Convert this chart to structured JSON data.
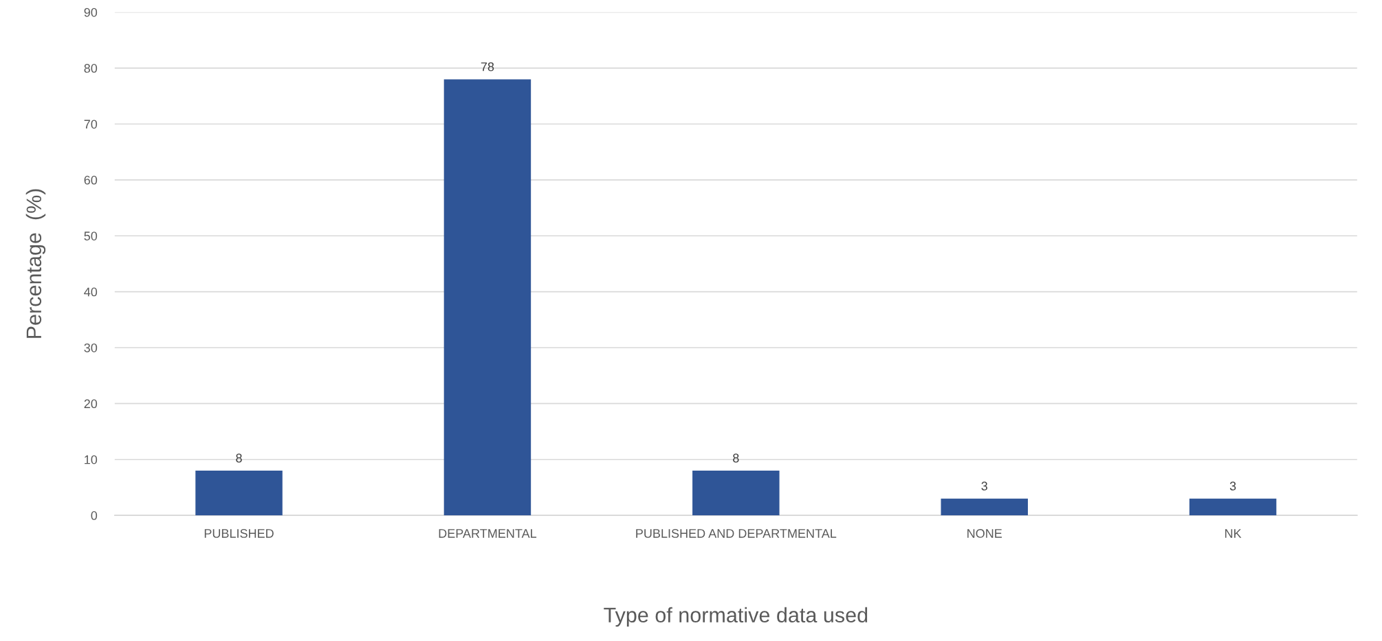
{
  "chart_data": {
    "type": "bar",
    "xlabel": "Type of normative data used",
    "ylabel": "Percentage  (%)",
    "categories": [
      "PUBLISHED",
      "DEPARTMENTAL",
      "PUBLISHED AND DEPARTMENTAL",
      "NONE",
      "NK"
    ],
    "values": [
      8,
      78,
      8,
      3,
      3
    ],
    "color": "#2f5597",
    "ylim": [
      0,
      90
    ],
    "yticks": [
      0,
      10,
      20,
      30,
      40,
      50,
      60,
      70,
      80,
      90
    ],
    "grid": "y",
    "data_labels": true,
    "legend": false
  }
}
